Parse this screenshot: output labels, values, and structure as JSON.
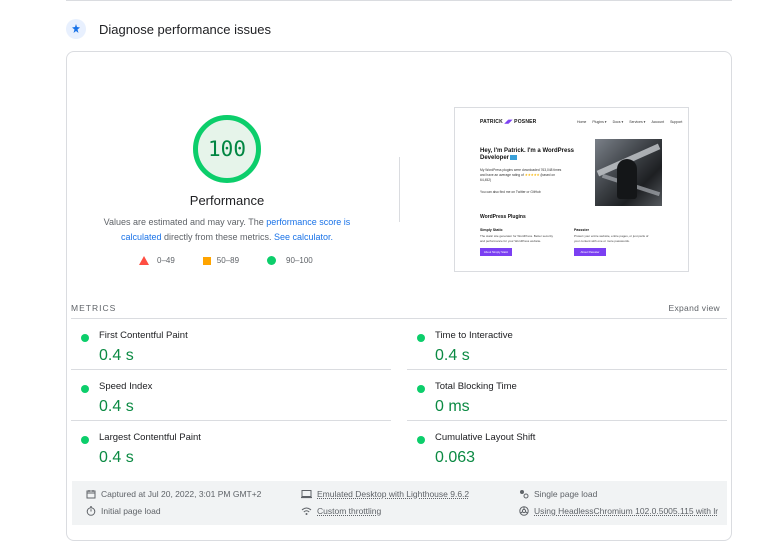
{
  "section": {
    "title": "Diagnose performance issues",
    "icon": "lighthouse-icon"
  },
  "score": {
    "value": "100",
    "label": "Performance",
    "note_prefix": "Values are estimated and may vary. The ",
    "note_link1": "performance score is calculated",
    "note_middle": " directly from these metrics. ",
    "note_link2": "See calculator.",
    "color": "#0cce6b"
  },
  "legend": [
    {
      "range": "0–49",
      "shape": "triangle",
      "color": "#ff4e42"
    },
    {
      "range": "50–89",
      "shape": "square",
      "color": "#ffa400"
    },
    {
      "range": "90–100",
      "shape": "circle",
      "color": "#0cce6b"
    }
  ],
  "preview": {
    "brand_a": "PATRICK",
    "brand_b": "POSNER",
    "nav": [
      "Home",
      "Plugins ▾",
      "Docs ▾",
      "Services ▾",
      "Account",
      "Support"
    ],
    "hero_title": "Hey, I'm Patrick. I'm a WordPress Developer",
    "hero_text_a": "My WordPress plugins were downloaded 763,048 times and have an average rating of",
    "hero_stars": "★★★★★",
    "hero_text_b": "(based on 64,452)",
    "hero_text2": "You can also find me on Twitter or GitHub",
    "section_title": "WordPress Plugins",
    "plugins": [
      {
        "name": "Simply Static",
        "desc": "The static site generator for WordPress. Better security and performance for your WordPress website.",
        "button": "About Simply Static"
      },
      {
        "name": "Passster",
        "desc": "Protect your entire website, entire pages, or just parts of your content with one or more passwords.",
        "button": "About Passster"
      }
    ]
  },
  "metrics": {
    "label": "METRICS",
    "expand": "Expand view",
    "items": [
      {
        "name": "First Contentful Paint",
        "value": "0.4 s"
      },
      {
        "name": "Time to Interactive",
        "value": "0.4 s"
      },
      {
        "name": "Speed Index",
        "value": "0.4 s"
      },
      {
        "name": "Total Blocking Time",
        "value": "0 ms"
      },
      {
        "name": "Largest Contentful Paint",
        "value": "0.4 s"
      },
      {
        "name": "Cumulative Layout Shift",
        "value": "0.063"
      }
    ]
  },
  "footer": {
    "captured": "Captured at Jul 20, 2022, 3:01 PM GMT+2",
    "emulated": "Emulated Desktop with Lighthouse 9.6.2",
    "session": "Single page load",
    "initial": "Initial page load",
    "throttling": "Custom throttling",
    "browser": "Using HeadlessChromium 102.0.5005.115 with lr"
  }
}
